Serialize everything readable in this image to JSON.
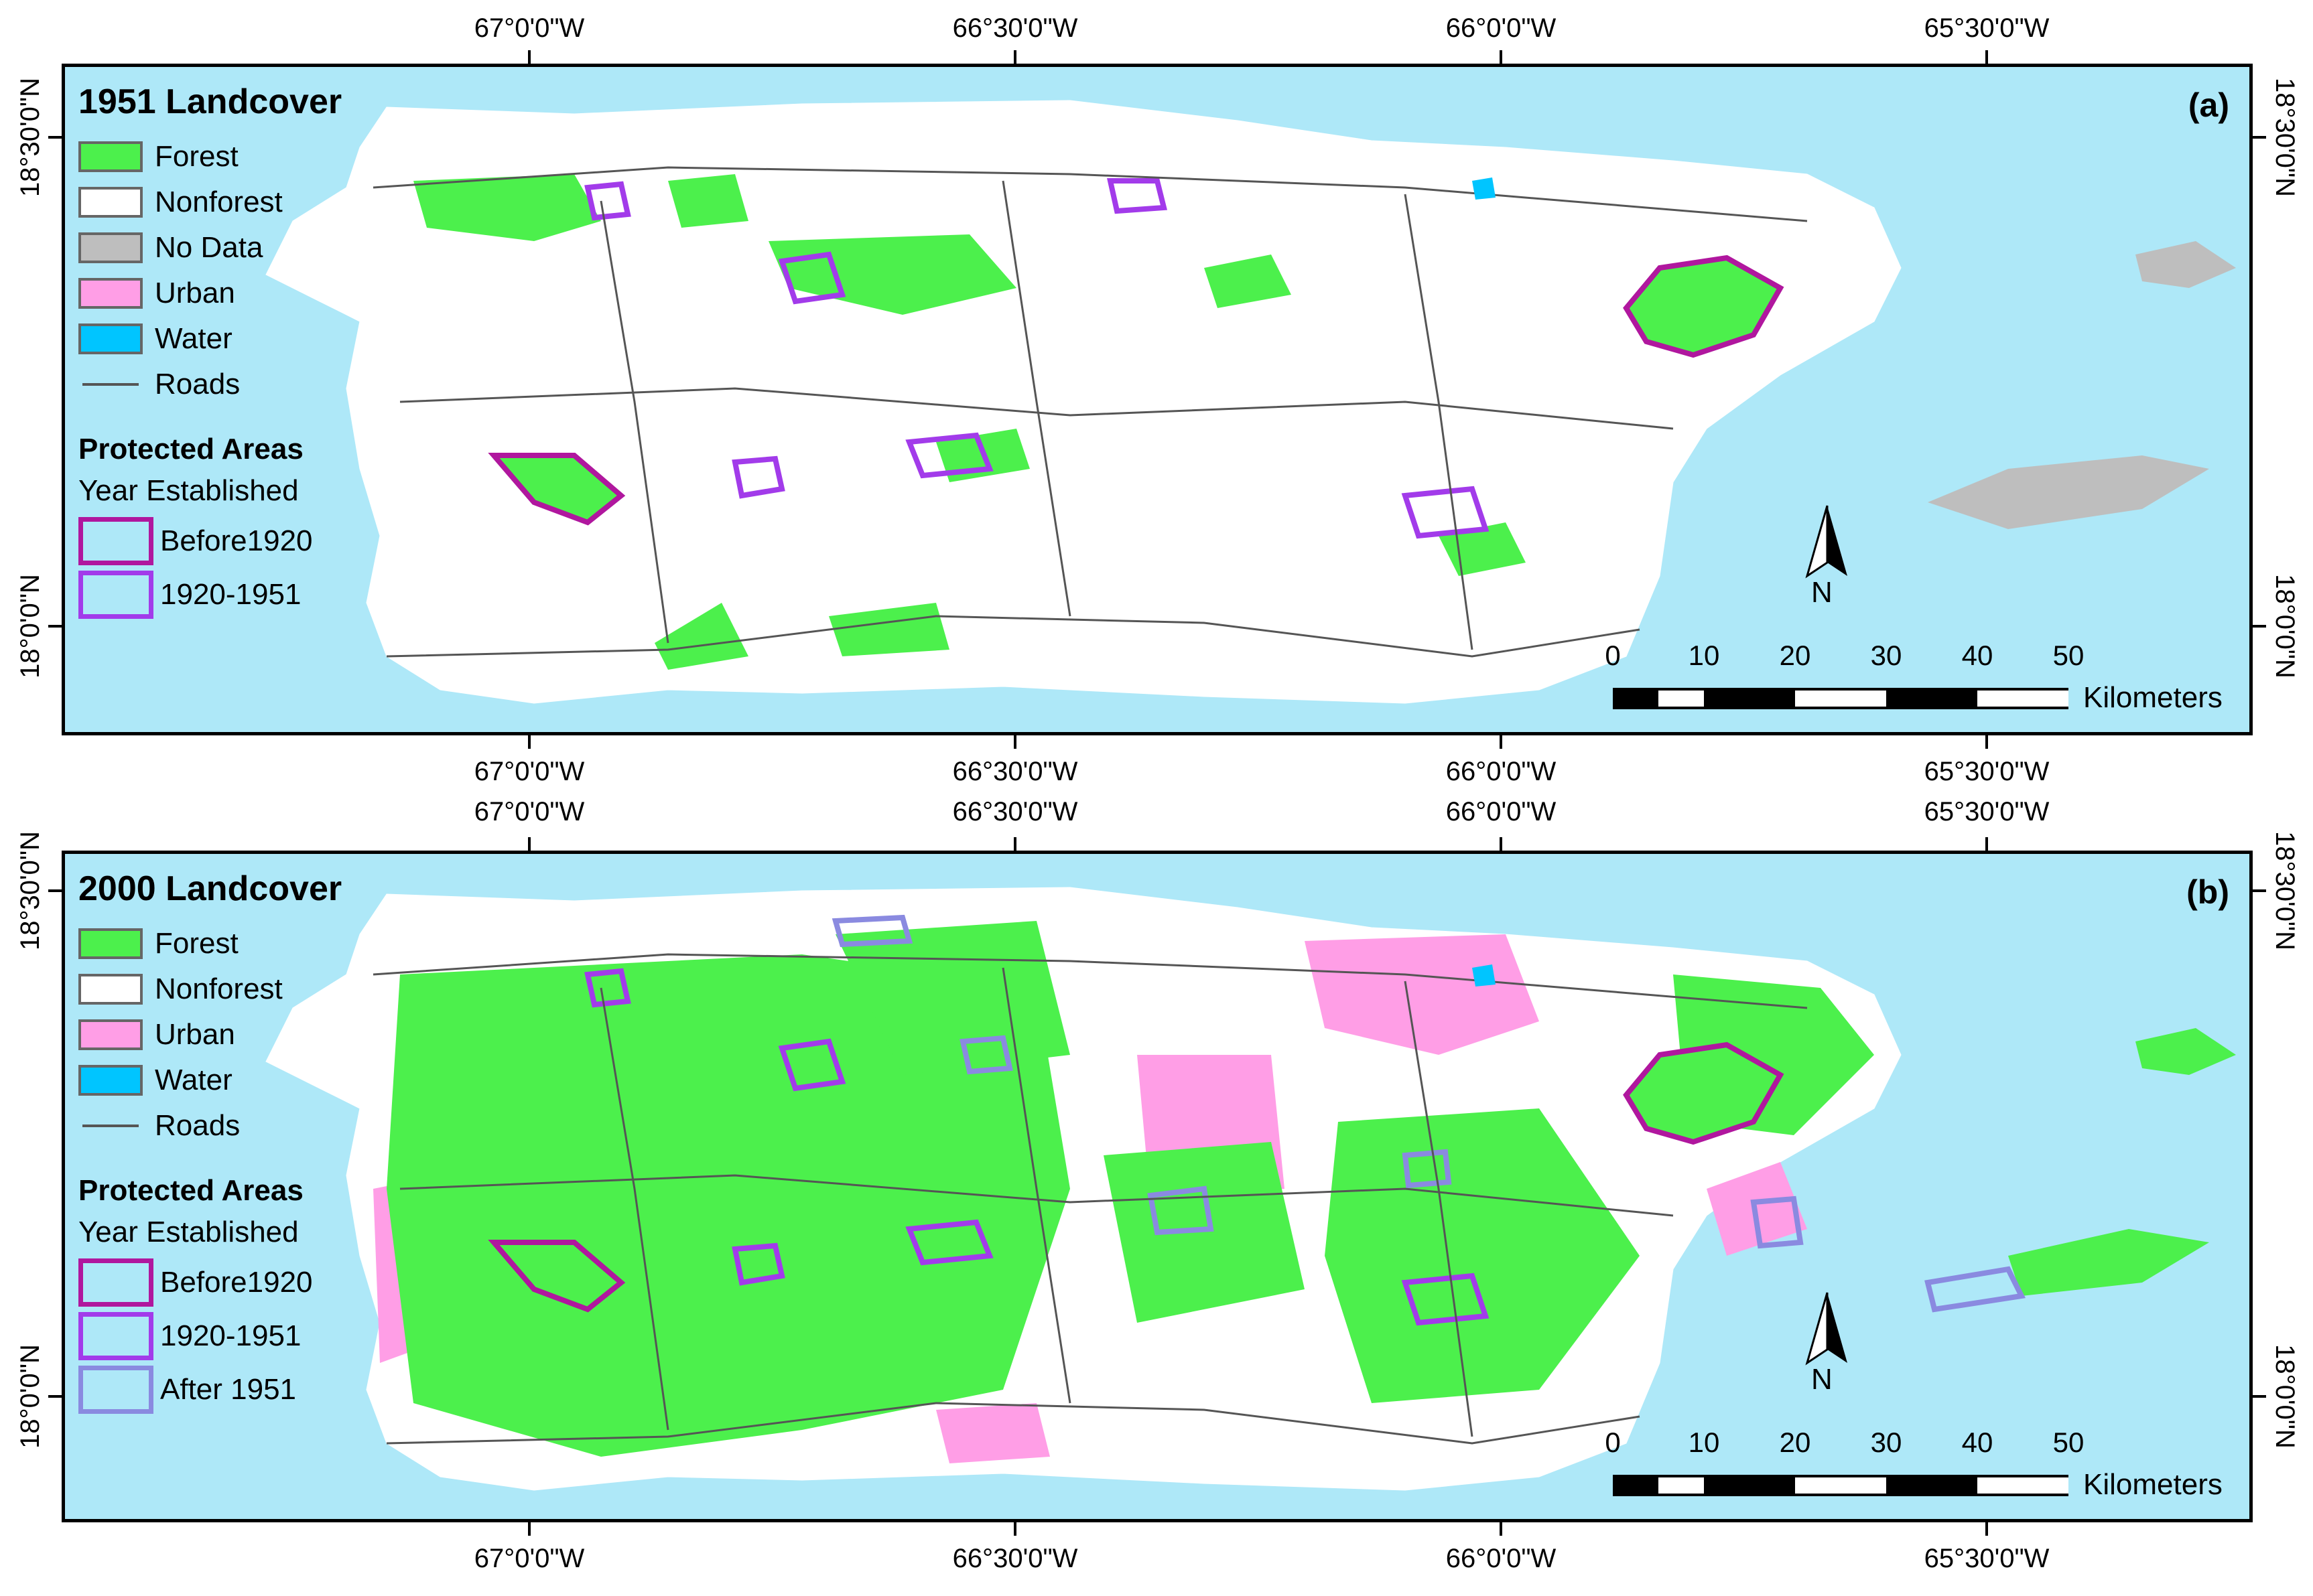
{
  "graticule": {
    "top_longitudes": [
      "67°0'0\"W",
      "66°30'0\"W",
      "66°0'0\"W",
      "65°30'0\"W"
    ],
    "left_latitudes": [
      "18°30'0\"N",
      "18°0'0\"N"
    ],
    "right_latitudes": [
      "18°30'0\"N",
      "18°0'0\"N"
    ]
  },
  "panels": [
    {
      "title": "1951 Landcover",
      "letter": "(a)",
      "legend": [
        {
          "label": "Forest",
          "type": "fill",
          "color": "#4cf04c"
        },
        {
          "label": "Nonforest",
          "type": "fill",
          "color": "#ffffff"
        },
        {
          "label": "No Data",
          "type": "fill",
          "color": "#bebebe"
        },
        {
          "label": "Urban",
          "type": "fill",
          "color": "#ff9ee6"
        },
        {
          "label": "Water",
          "type": "fill",
          "color": "#00c5ff"
        },
        {
          "label": "Roads",
          "type": "line",
          "color": "#555555"
        }
      ],
      "protected": {
        "title": "Protected Areas",
        "subtitle": "Year Established",
        "classes": [
          {
            "label": "Before1920",
            "color": "#b0179e"
          },
          {
            "label": "1920-1951",
            "color": "#a23bea"
          }
        ]
      }
    },
    {
      "title": "2000 Landcover",
      "letter": "(b)",
      "legend": [
        {
          "label": "Forest",
          "type": "fill",
          "color": "#4cf04c"
        },
        {
          "label": "Nonforest",
          "type": "fill",
          "color": "#ffffff"
        },
        {
          "label": "Urban",
          "type": "fill",
          "color": "#ff9ee6"
        },
        {
          "label": "Water",
          "type": "fill",
          "color": "#00c5ff"
        },
        {
          "label": "Roads",
          "type": "line",
          "color": "#555555"
        }
      ],
      "protected": {
        "title": "Protected Areas",
        "subtitle": "Year Established",
        "classes": [
          {
            "label": "Before1920",
            "color": "#b0179e"
          },
          {
            "label": "1920-1951",
            "color": "#a23bea"
          },
          {
            "label": "After 1951",
            "color": "#8a8ae0"
          }
        ]
      }
    }
  ],
  "scale": {
    "ticks": [
      "0",
      "10",
      "20",
      "30",
      "40",
      "50"
    ],
    "unit": "Kilometers"
  },
  "north_label": "N",
  "colors": {
    "sea": "#aee8f8",
    "forest": "#4cf04c",
    "urban": "#ff9ee6",
    "nodata": "#bebebe",
    "water": "#00c5ff"
  }
}
